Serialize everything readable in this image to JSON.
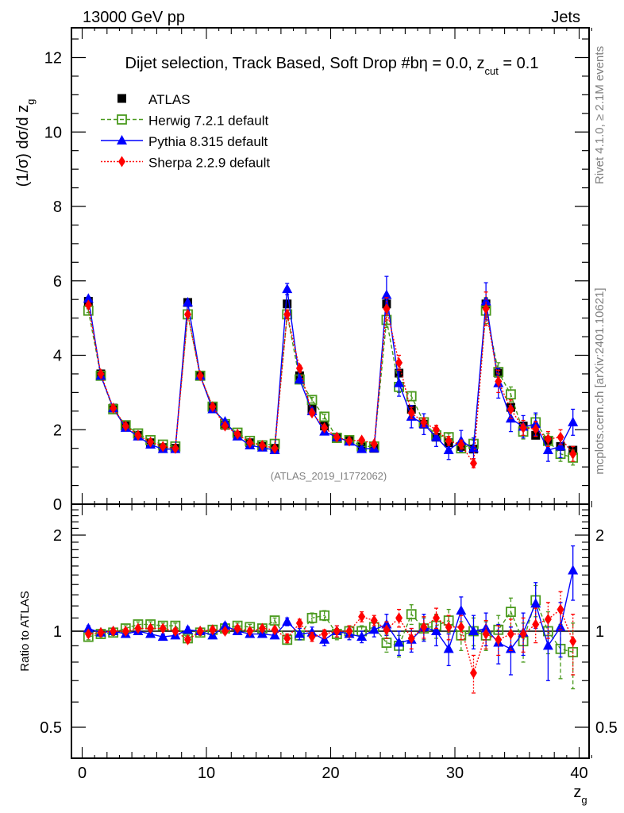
{
  "header": {
    "left": "13000 GeV pp",
    "right": "Jets"
  },
  "side_labels": {
    "rivet": "Rivet 4.1.0, ≥ 2.1M events",
    "mcplots": "mcplots.cern.ch [arXiv:2401.10621]"
  },
  "chart_data": [
    {
      "type": "line",
      "panel": "main",
      "title": "Dijet selection, Track Based, Soft Drop #bη = 0.0, z",
      "title_subscript": "cut",
      "title_suffix": " = 0.1",
      "xlabel": "",
      "ylabel": "(1/σ) dσ/d z",
      "ylabel_subscript": "g",
      "xlim": [
        -0.9,
        41
      ],
      "ylim": [
        0,
        12.8
      ],
      "yticks": [
        0,
        2,
        4,
        6,
        8,
        10,
        12
      ],
      "ytick_labels": [
        "0",
        "2",
        "4",
        "6",
        "8",
        "10",
        "12"
      ],
      "grid": false,
      "legend_position": "top-left",
      "watermark": "(ATLAS_2019_I1772062)",
      "x": [
        0.5,
        1.5,
        2.5,
        3.5,
        4.5,
        5.5,
        6.5,
        7.5,
        8.5,
        9.5,
        10.5,
        11.5,
        12.5,
        13.5,
        14.5,
        15.5,
        16.5,
        17.5,
        18.5,
        19.5,
        20.5,
        21.5,
        22.5,
        23.5,
        24.5,
        25.5,
        26.5,
        27.5,
        28.5,
        29.5,
        30.5,
        31.5,
        32.5,
        33.5,
        34.5,
        35.5,
        36.5,
        37.5,
        38.5,
        39.5
      ],
      "series": [
        {
          "name": "ATLAS",
          "color": "#000000",
          "marker": "filled-square",
          "line": "none",
          "values": [
            5.45,
            3.5,
            2.58,
            2.1,
            1.85,
            1.65,
            1.52,
            1.5,
            5.42,
            3.45,
            2.6,
            2.12,
            1.85,
            1.65,
            1.55,
            1.5,
            5.38,
            3.45,
            2.55,
            2.1,
            1.8,
            1.72,
            1.55,
            1.5,
            5.38,
            3.52,
            2.55,
            2.15,
            1.8,
            1.65,
            1.55,
            1.48,
            5.38,
            3.52,
            2.6,
            2.1,
            1.85,
            1.7,
            1.55,
            1.45
          ],
          "errors": [
            0.1,
            0.06,
            0.05,
            0.04,
            0.04,
            0.04,
            0.03,
            0.03,
            0.1,
            0.06,
            0.05,
            0.04,
            0.04,
            0.04,
            0.03,
            0.03,
            0.1,
            0.07,
            0.05,
            0.05,
            0.04,
            0.04,
            0.04,
            0.04,
            0.12,
            0.08,
            0.06,
            0.05,
            0.05,
            0.05,
            0.05,
            0.05,
            0.15,
            0.1,
            0.08,
            0.07,
            0.07,
            0.07,
            0.07,
            0.07
          ]
        },
        {
          "name": "Herwig 7.2.1 default",
          "color": "#4a9a1e",
          "marker": "open-square",
          "line": "dashed",
          "values": [
            5.2,
            3.45,
            2.55,
            2.12,
            1.9,
            1.72,
            1.6,
            1.55,
            5.1,
            3.45,
            2.62,
            2.15,
            1.92,
            1.7,
            1.58,
            1.62,
            5.1,
            3.35,
            2.8,
            2.35,
            1.78,
            1.72,
            1.55,
            1.55,
            4.95,
            3.15,
            2.9,
            2.2,
            1.85,
            1.8,
            1.5,
            1.62,
            5.2,
            3.55,
            2.95,
            1.95,
            2.2,
            1.7,
            1.35,
            1.25
          ],
          "errors": [
            0.05,
            0.04,
            0.03,
            0.03,
            0.03,
            0.03,
            0.03,
            0.03,
            0.05,
            0.04,
            0.03,
            0.03,
            0.03,
            0.03,
            0.03,
            0.03,
            0.1,
            0.08,
            0.07,
            0.06,
            0.06,
            0.06,
            0.06,
            0.06,
            0.2,
            0.15,
            0.12,
            0.1,
            0.1,
            0.1,
            0.1,
            0.1,
            0.35,
            0.25,
            0.2,
            0.2,
            0.2,
            0.2,
            0.2,
            0.2
          ]
        },
        {
          "name": "Pythia 8.315 default",
          "color": "#0000ff",
          "marker": "filled-triangle",
          "line": "solid",
          "values": [
            5.52,
            3.45,
            2.58,
            2.05,
            1.82,
            1.6,
            1.48,
            1.48,
            5.42,
            3.45,
            2.55,
            2.22,
            1.82,
            1.58,
            1.52,
            1.45,
            5.78,
            3.35,
            2.5,
            1.95,
            1.8,
            1.68,
            1.48,
            1.5,
            5.62,
            3.25,
            2.35,
            2.15,
            1.8,
            1.45,
            1.7,
            1.5,
            5.45,
            3.25,
            2.3,
            2.08,
            2.15,
            1.45,
            1.55,
            2.2
          ],
          "errors": [
            0.05,
            0.04,
            0.03,
            0.03,
            0.03,
            0.03,
            0.03,
            0.03,
            0.05,
            0.04,
            0.03,
            0.03,
            0.03,
            0.03,
            0.03,
            0.03,
            0.15,
            0.1,
            0.08,
            0.07,
            0.07,
            0.07,
            0.07,
            0.07,
            0.5,
            0.35,
            0.3,
            0.28,
            0.25,
            0.25,
            0.28,
            0.28,
            0.5,
            0.4,
            0.35,
            0.3,
            0.3,
            0.3,
            0.3,
            0.35
          ]
        },
        {
          "name": "Sherpa 2.2.9 default",
          "color": "#ff0000",
          "marker": "filled-diamond",
          "line": "dotted",
          "values": [
            5.35,
            3.5,
            2.58,
            2.1,
            1.85,
            1.67,
            1.55,
            1.5,
            5.1,
            3.45,
            2.62,
            2.1,
            1.88,
            1.65,
            1.58,
            1.5,
            5.1,
            3.65,
            2.45,
            2.05,
            1.8,
            1.7,
            1.72,
            1.62,
            5.25,
            3.8,
            2.45,
            2.2,
            2.0,
            1.7,
            1.6,
            1.1,
            5.25,
            3.3,
            2.55,
            2.05,
            2.02,
            1.75,
            1.8,
            1.35
          ],
          "errors": [
            0.05,
            0.04,
            0.03,
            0.03,
            0.03,
            0.03,
            0.03,
            0.03,
            0.05,
            0.04,
            0.03,
            0.03,
            0.03,
            0.03,
            0.03,
            0.03,
            0.12,
            0.08,
            0.07,
            0.06,
            0.06,
            0.06,
            0.06,
            0.06,
            0.3,
            0.2,
            0.15,
            0.12,
            0.12,
            0.12,
            0.12,
            0.12,
            0.45,
            0.3,
            0.25,
            0.2,
            0.2,
            0.2,
            0.2,
            0.2
          ]
        }
      ]
    },
    {
      "type": "line",
      "panel": "ratio",
      "xlabel": "z",
      "xlabel_subscript": "g",
      "ylabel": "Ratio to ATLAS",
      "yscale": "log",
      "xlim": [
        -0.9,
        41
      ],
      "ylim": [
        0.4,
        2.5
      ],
      "xticks": [
        0,
        10,
        20,
        30,
        40
      ],
      "xtick_labels": [
        "0",
        "10",
        "20",
        "30",
        "40"
      ],
      "yticks": [
        0.5,
        1,
        2
      ],
      "ytick_labels": [
        "0.5",
        "1",
        "2"
      ],
      "reference_line": 1,
      "grid": false,
      "x": [
        0.5,
        1.5,
        2.5,
        3.5,
        4.5,
        5.5,
        6.5,
        7.5,
        8.5,
        9.5,
        10.5,
        11.5,
        12.5,
        13.5,
        14.5,
        15.5,
        16.5,
        17.5,
        18.5,
        19.5,
        20.5,
        21.5,
        22.5,
        23.5,
        24.5,
        25.5,
        26.5,
        27.5,
        28.5,
        29.5,
        30.5,
        31.5,
        32.5,
        33.5,
        34.5,
        35.5,
        36.5,
        37.5,
        38.5,
        39.5
      ],
      "series": [
        {
          "name": "Herwig 7.2.1 default",
          "color": "#4a9a1e",
          "marker": "open-square",
          "line": "dashed",
          "values": [
            0.96,
            0.98,
            0.99,
            1.02,
            1.05,
            1.05,
            1.04,
            1.04,
            0.95,
            0.99,
            1.01,
            1.02,
            1.04,
            1.03,
            1.02,
            1.08,
            0.94,
            0.97,
            1.1,
            1.12,
            0.98,
            1.0,
            1.0,
            1.03,
            0.92,
            0.9,
            1.13,
            1.02,
            1.04,
            1.08,
            0.97,
            1.0,
            0.97,
            1.01,
            1.15,
            0.93,
            1.25,
            1.0,
            0.88,
            0.86
          ],
          "errors": [
            0.02,
            0.02,
            0.02,
            0.02,
            0.02,
            0.02,
            0.02,
            0.02,
            0.02,
            0.02,
            0.02,
            0.02,
            0.02,
            0.02,
            0.02,
            0.02,
            0.03,
            0.03,
            0.04,
            0.04,
            0.04,
            0.04,
            0.04,
            0.04,
            0.06,
            0.07,
            0.08,
            0.08,
            0.09,
            0.09,
            0.1,
            0.1,
            0.1,
            0.11,
            0.12,
            0.13,
            0.14,
            0.15,
            0.17,
            0.2
          ]
        },
        {
          "name": "Pythia 8.315 default",
          "color": "#0000ff",
          "marker": "filled-triangle",
          "line": "solid",
          "values": [
            1.02,
            0.99,
            1.0,
            0.98,
            1.0,
            0.98,
            0.96,
            0.97,
            1.01,
            1.0,
            0.97,
            1.04,
            1.0,
            0.98,
            0.98,
            0.97,
            1.07,
            0.98,
            0.99,
            0.94,
            1.0,
            0.98,
            0.96,
            1.01,
            1.05,
            0.92,
            0.94,
            1.03,
            1.0,
            0.88,
            1.16,
            1.0,
            1.02,
            0.92,
            0.88,
            0.99,
            1.22,
            0.9,
            1.03,
            1.55
          ],
          "errors": [
            0.02,
            0.02,
            0.02,
            0.02,
            0.02,
            0.02,
            0.02,
            0.02,
            0.02,
            0.02,
            0.02,
            0.02,
            0.02,
            0.02,
            0.02,
            0.02,
            0.03,
            0.04,
            0.04,
            0.04,
            0.04,
            0.04,
            0.04,
            0.05,
            0.08,
            0.08,
            0.08,
            0.1,
            0.1,
            0.1,
            0.12,
            0.12,
            0.12,
            0.13,
            0.15,
            0.15,
            0.2,
            0.2,
            0.2,
            0.3
          ]
        },
        {
          "name": "Sherpa 2.2.9 default",
          "color": "#ff0000",
          "marker": "filled-diamond",
          "line": "dotted",
          "values": [
            0.98,
            0.99,
            1.0,
            1.0,
            1.02,
            1.02,
            1.02,
            1.0,
            0.94,
            1.0,
            1.01,
            1.0,
            1.02,
            1.0,
            1.02,
            1.01,
            0.95,
            1.06,
            0.96,
            0.98,
            1.0,
            1.0,
            1.11,
            1.08,
            1.01,
            1.1,
            0.95,
            1.03,
            1.1,
            1.03,
            1.03,
            0.74,
            0.98,
            0.94,
            0.98,
            0.98,
            1.05,
            1.09,
            1.17,
            0.93
          ],
          "errors": [
            0.02,
            0.02,
            0.02,
            0.02,
            0.02,
            0.02,
            0.02,
            0.02,
            0.02,
            0.02,
            0.02,
            0.02,
            0.02,
            0.02,
            0.02,
            0.02,
            0.03,
            0.03,
            0.03,
            0.03,
            0.04,
            0.04,
            0.04,
            0.04,
            0.06,
            0.07,
            0.07,
            0.08,
            0.08,
            0.09,
            0.09,
            0.1,
            0.1,
            0.1,
            0.11,
            0.12,
            0.13,
            0.14,
            0.16,
            0.2
          ]
        }
      ]
    }
  ]
}
